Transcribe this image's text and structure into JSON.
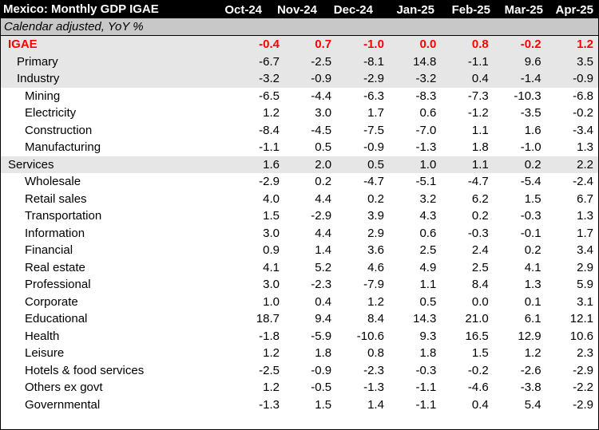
{
  "title": "Mexico: Monthly GDP IGAE",
  "subtitle": "Calendar adjusted, YoY %",
  "columns": [
    "Oct-24",
    "Nov-24",
    "Dec-24",
    "Jan-25",
    "Feb-25",
    "Mar-25",
    "Apr-25"
  ],
  "rows": [
    {
      "label": "IGAE",
      "level": 0,
      "shaded": true,
      "headline": true,
      "values": [
        "-0.4",
        "0.7",
        "-1.0",
        "0.0",
        "0.8",
        "-0.2",
        "1.2"
      ]
    },
    {
      "label": "Primary",
      "level": 1,
      "shaded": true,
      "headline": false,
      "values": [
        "-6.7",
        "-2.5",
        "-8.1",
        "14.8",
        "-1.1",
        "9.6",
        "3.5"
      ]
    },
    {
      "label": "Industry",
      "level": 1,
      "shaded": true,
      "headline": false,
      "values": [
        "-3.2",
        "-0.9",
        "-2.9",
        "-3.2",
        "0.4",
        "-1.4",
        "-0.9"
      ]
    },
    {
      "label": "Mining",
      "level": 2,
      "shaded": false,
      "headline": false,
      "values": [
        "-6.5",
        "-4.4",
        "-6.3",
        "-8.3",
        "-7.3",
        "-10.3",
        "-6.8"
      ]
    },
    {
      "label": "Electricity",
      "level": 2,
      "shaded": false,
      "headline": false,
      "values": [
        "1.2",
        "3.0",
        "1.7",
        "0.6",
        "-1.2",
        "-3.5",
        "-0.2"
      ]
    },
    {
      "label": "Construction",
      "level": 2,
      "shaded": false,
      "headline": false,
      "values": [
        "-8.4",
        "-4.5",
        "-7.5",
        "-7.0",
        "1.1",
        "1.6",
        "-3.4"
      ]
    },
    {
      "label": "Manufacturing",
      "level": 2,
      "shaded": false,
      "headline": false,
      "values": [
        "-1.1",
        "0.5",
        "-0.9",
        "-1.3",
        "1.8",
        "-1.0",
        "1.3"
      ]
    },
    {
      "label": "Services",
      "level": 0,
      "shaded": true,
      "headline": false,
      "values": [
        "1.6",
        "2.0",
        "0.5",
        "1.0",
        "1.1",
        "0.2",
        "2.2"
      ]
    },
    {
      "label": "Wholesale",
      "level": 2,
      "shaded": false,
      "headline": false,
      "values": [
        "-2.9",
        "0.2",
        "-4.7",
        "-5.1",
        "-4.7",
        "-5.4",
        "-2.4"
      ]
    },
    {
      "label": "Retail sales",
      "level": 2,
      "shaded": false,
      "headline": false,
      "values": [
        "4.0",
        "4.4",
        "0.2",
        "3.2",
        "6.2",
        "1.5",
        "6.7"
      ]
    },
    {
      "label": "Transportation",
      "level": 2,
      "shaded": false,
      "headline": false,
      "values": [
        "1.5",
        "-2.9",
        "3.9",
        "4.3",
        "0.2",
        "-0.3",
        "1.3"
      ]
    },
    {
      "label": "Information",
      "level": 2,
      "shaded": false,
      "headline": false,
      "values": [
        "3.0",
        "4.4",
        "2.9",
        "0.6",
        "-0.3",
        "-0.1",
        "1.7"
      ]
    },
    {
      "label": "Financial",
      "level": 2,
      "shaded": false,
      "headline": false,
      "values": [
        "0.9",
        "1.4",
        "3.6",
        "2.5",
        "2.4",
        "0.2",
        "3.4"
      ]
    },
    {
      "label": "Real estate",
      "level": 2,
      "shaded": false,
      "headline": false,
      "values": [
        "4.1",
        "5.2",
        "4.6",
        "4.9",
        "2.5",
        "4.1",
        "2.9"
      ]
    },
    {
      "label": "Professional",
      "level": 2,
      "shaded": false,
      "headline": false,
      "values": [
        "3.0",
        "-2.3",
        "-7.9",
        "1.1",
        "8.4",
        "1.3",
        "5.9"
      ]
    },
    {
      "label": "Corporate",
      "level": 2,
      "shaded": false,
      "headline": false,
      "values": [
        "1.0",
        "0.4",
        "1.2",
        "0.5",
        "0.0",
        "0.1",
        "3.1"
      ]
    },
    {
      "label": "Educational",
      "level": 2,
      "shaded": false,
      "headline": false,
      "values": [
        "18.7",
        "9.4",
        "8.4",
        "14.3",
        "21.0",
        "6.1",
        "12.1"
      ]
    },
    {
      "label": "Health",
      "level": 2,
      "shaded": false,
      "headline": false,
      "values": [
        "-1.8",
        "-5.9",
        "-10.6",
        "9.3",
        "16.5",
        "12.9",
        "10.6"
      ]
    },
    {
      "label": "Leisure",
      "level": 2,
      "shaded": false,
      "headline": false,
      "values": [
        "1.2",
        "1.8",
        "0.8",
        "1.8",
        "1.5",
        "1.2",
        "2.3"
      ]
    },
    {
      "label": "Hotels & food services",
      "level": 2,
      "shaded": false,
      "headline": false,
      "values": [
        "-2.5",
        "-0.9",
        "-2.3",
        "-0.3",
        "-0.2",
        "-2.6",
        "-2.9"
      ]
    },
    {
      "label": "Others ex govt",
      "level": 2,
      "shaded": false,
      "headline": false,
      "values": [
        "1.2",
        "-0.5",
        "-1.3",
        "-1.1",
        "-4.6",
        "-3.8",
        "-2.2"
      ]
    },
    {
      "label": "Governmental",
      "level": 2,
      "shaded": false,
      "headline": false,
      "values": [
        "-1.3",
        "1.5",
        "1.4",
        "-1.1",
        "0.4",
        "5.4",
        "-2.9"
      ]
    }
  ],
  "colors": {
    "header_bg": "#000000",
    "subheader_bg": "#c8c8c8",
    "shade": "#e6e6e6",
    "headline": "#ff0000"
  }
}
